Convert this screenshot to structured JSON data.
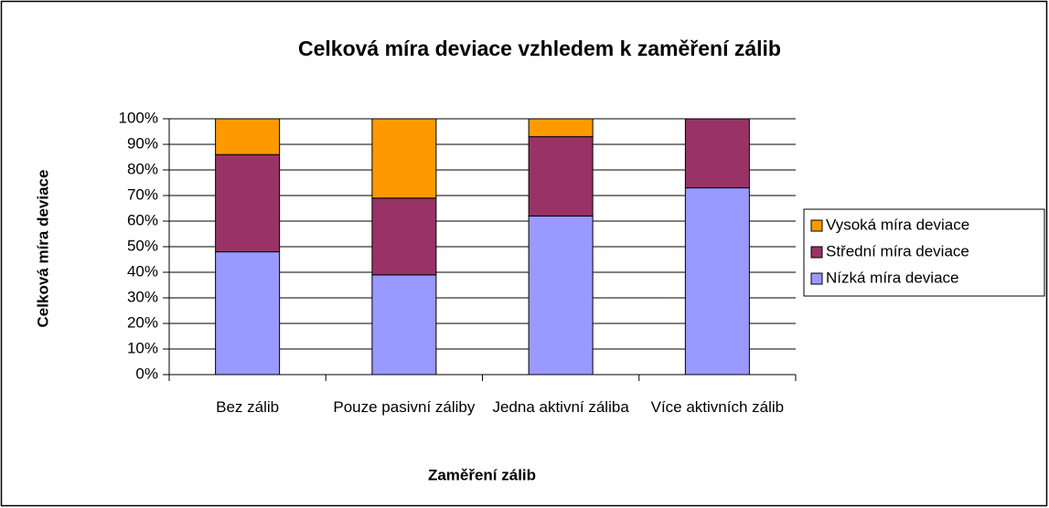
{
  "chart_data": {
    "type": "stacked_bar_percent",
    "title": "Celková míra deviace vzhledem k zaměření zálib",
    "x_label": "Zaměření zálib",
    "y_label": "Celková míra deviace",
    "categories": [
      "Bez zálib",
      "Pouze pasivní záliby",
      "Jedna aktivní záliba",
      "Více aktivních zálib"
    ],
    "series": [
      {
        "name": "Nízká míra deviace",
        "color": "#9999ff",
        "values": [
          48,
          39,
          62,
          73
        ]
      },
      {
        "name": "Střední míra deviace",
        "color": "#993366",
        "values": [
          38,
          30,
          31,
          27
        ]
      },
      {
        "name": "Vysoká míra deviace",
        "color": "#ff9900",
        "values": [
          14,
          31,
          7,
          0
        ]
      }
    ],
    "ylim": [
      0,
      100
    ],
    "yticks": [
      {
        "value": 0,
        "label": "0%"
      },
      {
        "value": 10,
        "label": "10%"
      },
      {
        "value": 20,
        "label": "20%"
      },
      {
        "value": 30,
        "label": "30%"
      },
      {
        "value": 40,
        "label": "40%"
      },
      {
        "value": 50,
        "label": "50%"
      },
      {
        "value": 60,
        "label": "60%"
      },
      {
        "value": 70,
        "label": "70%"
      },
      {
        "value": 80,
        "label": "80%"
      },
      {
        "value": 90,
        "label": "90%"
      },
      {
        "value": 100,
        "label": "100%"
      }
    ],
    "grid": true,
    "legend": "right"
  }
}
